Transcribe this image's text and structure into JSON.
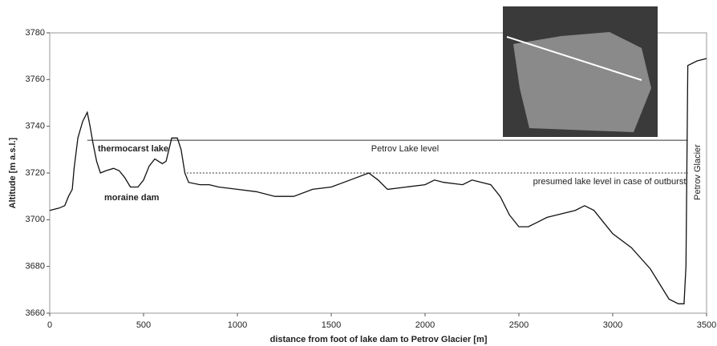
{
  "chart_data": {
    "type": "line",
    "x_label": "distance from foot of lake dam to Petrov Glacier [m]",
    "y_label": "Altitude [m a.s.l.]",
    "x": [
      0,
      50,
      80,
      100,
      120,
      130,
      150,
      175,
      200,
      215,
      230,
      250,
      270,
      300,
      340,
      370,
      400,
      430,
      470,
      500,
      530,
      560,
      600,
      620,
      650,
      680,
      700,
      720,
      740,
      800,
      850,
      900,
      1000,
      1100,
      1200,
      1300,
      1400,
      1500,
      1600,
      1700,
      1750,
      1800,
      1900,
      2000,
      2050,
      2100,
      2200,
      2250,
      2350,
      2400,
      2450,
      2500,
      2550,
      2600,
      2650,
      2700,
      2800,
      2850,
      2900,
      2950,
      3000,
      3100,
      3200,
      3300,
      3350,
      3380,
      3390,
      3400,
      3450,
      3500
    ],
    "values": [
      3704,
      3705,
      3706,
      3710,
      3713,
      3722,
      3735,
      3742,
      3746,
      3740,
      3733,
      3725,
      3720,
      3721,
      3722,
      3721,
      3718,
      3714,
      3714,
      3717,
      3723,
      3726,
      3724,
      3725,
      3735,
      3735,
      3730,
      3720,
      3716,
      3715,
      3715,
      3714,
      3713,
      3712,
      3710,
      3710,
      3713,
      3714,
      3717,
      3720,
      3717,
      3713,
      3714,
      3715,
      3717,
      3716,
      3715,
      3717,
      3715,
      3710,
      3702,
      3697,
      3697,
      3699,
      3701,
      3702,
      3704,
      3706,
      3704,
      3699,
      3694,
      3688,
      3679,
      3666,
      3664,
      3664,
      3680,
      3766,
      3768,
      3769
    ],
    "color": "#111111",
    "reference_lines": [
      {
        "label": "Petrov Lake level",
        "y": 3734,
        "x": [
          200,
          3400
        ],
        "dashed": false
      },
      {
        "label": "presumed lake level in case of outburst",
        "y": 3720,
        "x": [
          730,
          3400
        ],
        "dashed": true
      }
    ],
    "annotations": [
      "thermocarst lake",
      "moraine dam",
      "Petrov Glacier"
    ],
    "xlim": [
      0,
      3500
    ],
    "xticks": [
      0,
      500,
      1000,
      1500,
      2000,
      2500,
      3000,
      3500
    ],
    "ylim": [
      3660,
      3780
    ],
    "yticks": [
      3660,
      3680,
      3700,
      3720,
      3740,
      3760,
      3780
    ],
    "grid": false
  }
}
